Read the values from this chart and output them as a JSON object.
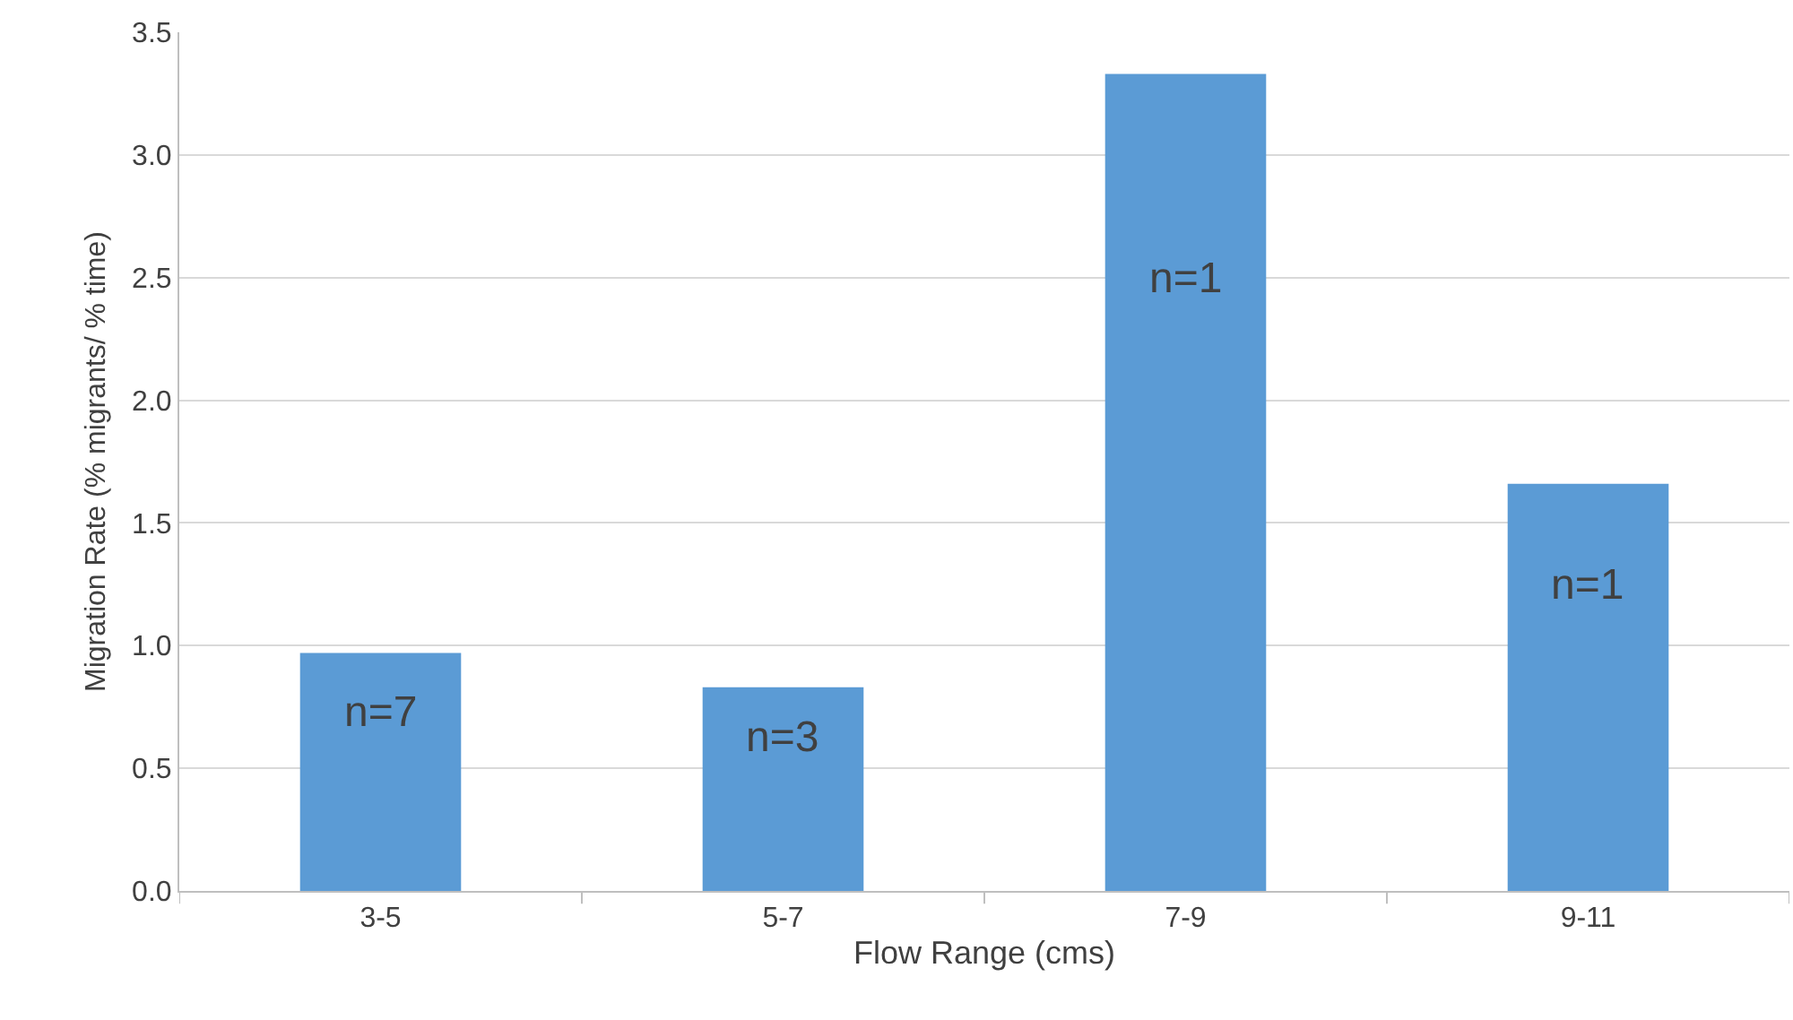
{
  "chart_data": {
    "type": "bar",
    "xlabel": "Flow Range (cms)",
    "ylabel": "Migration Rate (% migrants/ % time)",
    "categories": [
      "3-5",
      "5-7",
      "7-9",
      "9-11"
    ],
    "values": [
      0.97,
      0.83,
      3.33,
      1.66
    ],
    "color": "#5b9bd5",
    "ylim": [
      0,
      3.5
    ],
    "yticks": [
      {
        "value": 0,
        "label": "0.0"
      },
      {
        "value": 0.5,
        "label": "0.5"
      },
      {
        "value": 1,
        "label": "1.0"
      },
      {
        "value": 1.5,
        "label": "1.5"
      },
      {
        "value": 2,
        "label": "2.0"
      },
      {
        "value": 2.5,
        "label": "2.5"
      },
      {
        "value": 3,
        "label": "3.0"
      },
      {
        "value": 3.5,
        "label": "3.5"
      }
    ],
    "grid": "y",
    "legend": false,
    "annotations": [
      "n=7",
      "n=3",
      "n=1",
      "n=1"
    ]
  }
}
